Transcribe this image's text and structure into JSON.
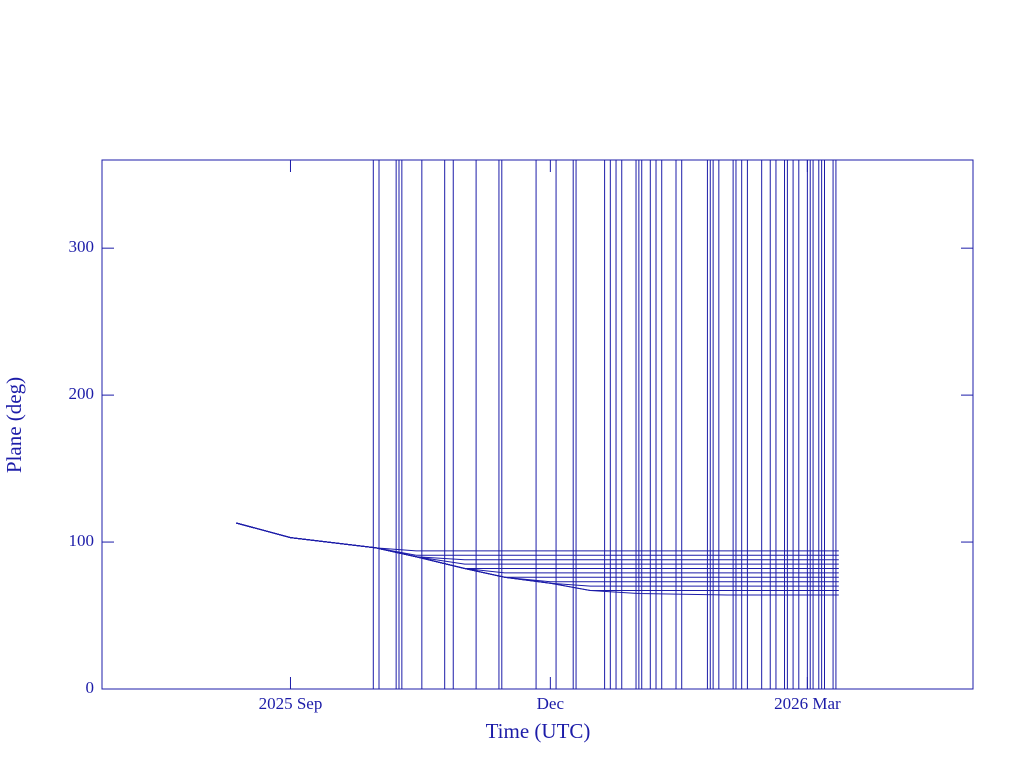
{
  "chart_data": {
    "type": "line",
    "xlabel": "Time (UTC)",
    "ylabel": "Plane (deg)",
    "color": "#1c1ca8",
    "xlim": [
      "2025-06-27",
      "2026-04-28"
    ],
    "xticks": [
      {
        "value": "2025-09-01",
        "label": "2025 Sep"
      },
      {
        "value": "2025-12-01",
        "label": "Dec"
      },
      {
        "value": "2026-03-01",
        "label": "2026 Mar"
      }
    ],
    "ylim": [
      0,
      360
    ],
    "yticks": [
      0,
      100,
      200,
      300
    ],
    "events": [
      "2025-09-30",
      "2025-10-02",
      "2025-10-08",
      "2025-10-09",
      "2025-10-10",
      "2025-10-17",
      "2025-10-25",
      "2025-10-28",
      "2025-11-05",
      "2025-11-13",
      "2025-11-14",
      "2025-11-26",
      "2025-12-03",
      "2025-12-09",
      "2025-12-10",
      "2025-12-20",
      "2025-12-22",
      "2025-12-24",
      "2025-12-26",
      "2025-12-31",
      "2026-01-01",
      "2026-01-02",
      "2026-01-05",
      "2026-01-07",
      "2026-01-09",
      "2026-01-14",
      "2026-01-16",
      "2026-01-25",
      "2026-01-26",
      "2026-01-27",
      "2026-01-29",
      "2026-02-03",
      "2026-02-04",
      "2026-02-06",
      "2026-02-08",
      "2026-02-13",
      "2026-02-16",
      "2026-02-18",
      "2026-02-21",
      "2026-02-22",
      "2026-02-24",
      "2026-02-26",
      "2026-03-01",
      "2026-03-02",
      "2026-03-03",
      "2026-03-05",
      "2026-03-06",
      "2026-03-07",
      "2026-03-10",
      "2026-03-11"
    ],
    "x": [
      "2025-08-13",
      "2025-09-01",
      "2025-10-01",
      "2025-10-15",
      "2025-11-01",
      "2025-11-15",
      "2025-12-01",
      "2025-12-15",
      "2026-01-01",
      "2026-02-01",
      "2026-03-12"
    ],
    "series": [
      {
        "values": [
          113,
          103,
          96,
          94,
          94,
          94,
          94,
          94,
          94,
          94,
          94
        ]
      },
      {
        "values": [
          113,
          103,
          96,
          91,
          91,
          91,
          91,
          91,
          91,
          91,
          91
        ]
      },
      {
        "values": [
          113,
          103,
          96,
          90,
          88,
          88,
          88,
          88,
          88,
          88,
          88
        ]
      },
      {
        "values": [
          113,
          103,
          96,
          90,
          85,
          85,
          85,
          85,
          85,
          85,
          85
        ]
      },
      {
        "values": [
          113,
          103,
          96,
          90,
          82,
          82,
          82,
          82,
          82,
          82,
          82
        ]
      },
      {
        "values": [
          113,
          103,
          96,
          90,
          82,
          79,
          79,
          79,
          79,
          79,
          79
        ]
      },
      {
        "values": [
          113,
          103,
          96,
          90,
          82,
          76,
          76,
          76,
          76,
          76,
          76
        ]
      },
      {
        "values": [
          113,
          103,
          96,
          90,
          82,
          76,
          73,
          73,
          73,
          73,
          73
        ]
      },
      {
        "values": [
          113,
          103,
          96,
          90,
          82,
          76,
          72,
          70,
          70,
          70,
          70
        ]
      },
      {
        "values": [
          113,
          103,
          96,
          90,
          82,
          76,
          72,
          67,
          67,
          67,
          67
        ]
      },
      {
        "values": [
          113,
          103,
          96,
          90,
          82,
          76,
          72,
          67,
          65,
          64,
          64
        ]
      }
    ]
  }
}
